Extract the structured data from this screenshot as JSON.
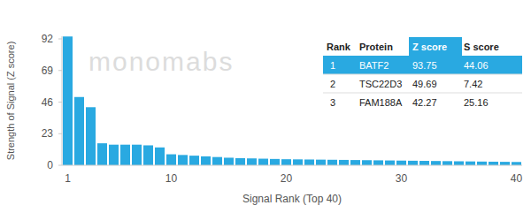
{
  "chart_data": {
    "type": "bar",
    "x_label": "Signal Rank (Top 40)",
    "y_label": "Strength of Signal (Z score)",
    "annotations": [
      "monomabs"
    ],
    "categories": [
      1,
      null,
      null,
      null,
      null,
      null,
      null,
      null,
      null,
      10,
      null,
      null,
      null,
      null,
      null,
      null,
      null,
      null,
      null,
      20,
      null,
      null,
      null,
      null,
      null,
      null,
      null,
      null,
      null,
      30,
      null,
      null,
      null,
      null,
      null,
      null,
      null,
      null,
      null,
      40
    ],
    "values": [
      93.75,
      49.69,
      42.27,
      16,
      15,
      15,
      15,
      14.5,
      13,
      8,
      7.5,
      7,
      6.5,
      6,
      5.5,
      5.2,
      5,
      4.8,
      4.6,
      4.4,
      4.3,
      4.2,
      4.1,
      4,
      3.9,
      3.8,
      3.7,
      3.6,
      3.5,
      3.4,
      3.3,
      3.2,
      3.1,
      3,
      2.9,
      2.8,
      2.7,
      2.6,
      2.5,
      2.4
    ],
    "color": "#29a9e1",
    "ylim": [
      0,
      94
    ],
    "yticks": [
      0,
      23,
      46,
      69,
      92
    ],
    "grid": false
  },
  "table": {
    "header": [
      "Rank",
      "Protein",
      "Z score",
      "S score"
    ],
    "rows": [
      [
        1,
        "BATF2",
        93.75,
        44.06
      ],
      [
        2,
        "TSC22D3",
        49.69,
        7.42
      ],
      [
        3,
        "FAM188A",
        42.27,
        25.16
      ]
    ]
  }
}
